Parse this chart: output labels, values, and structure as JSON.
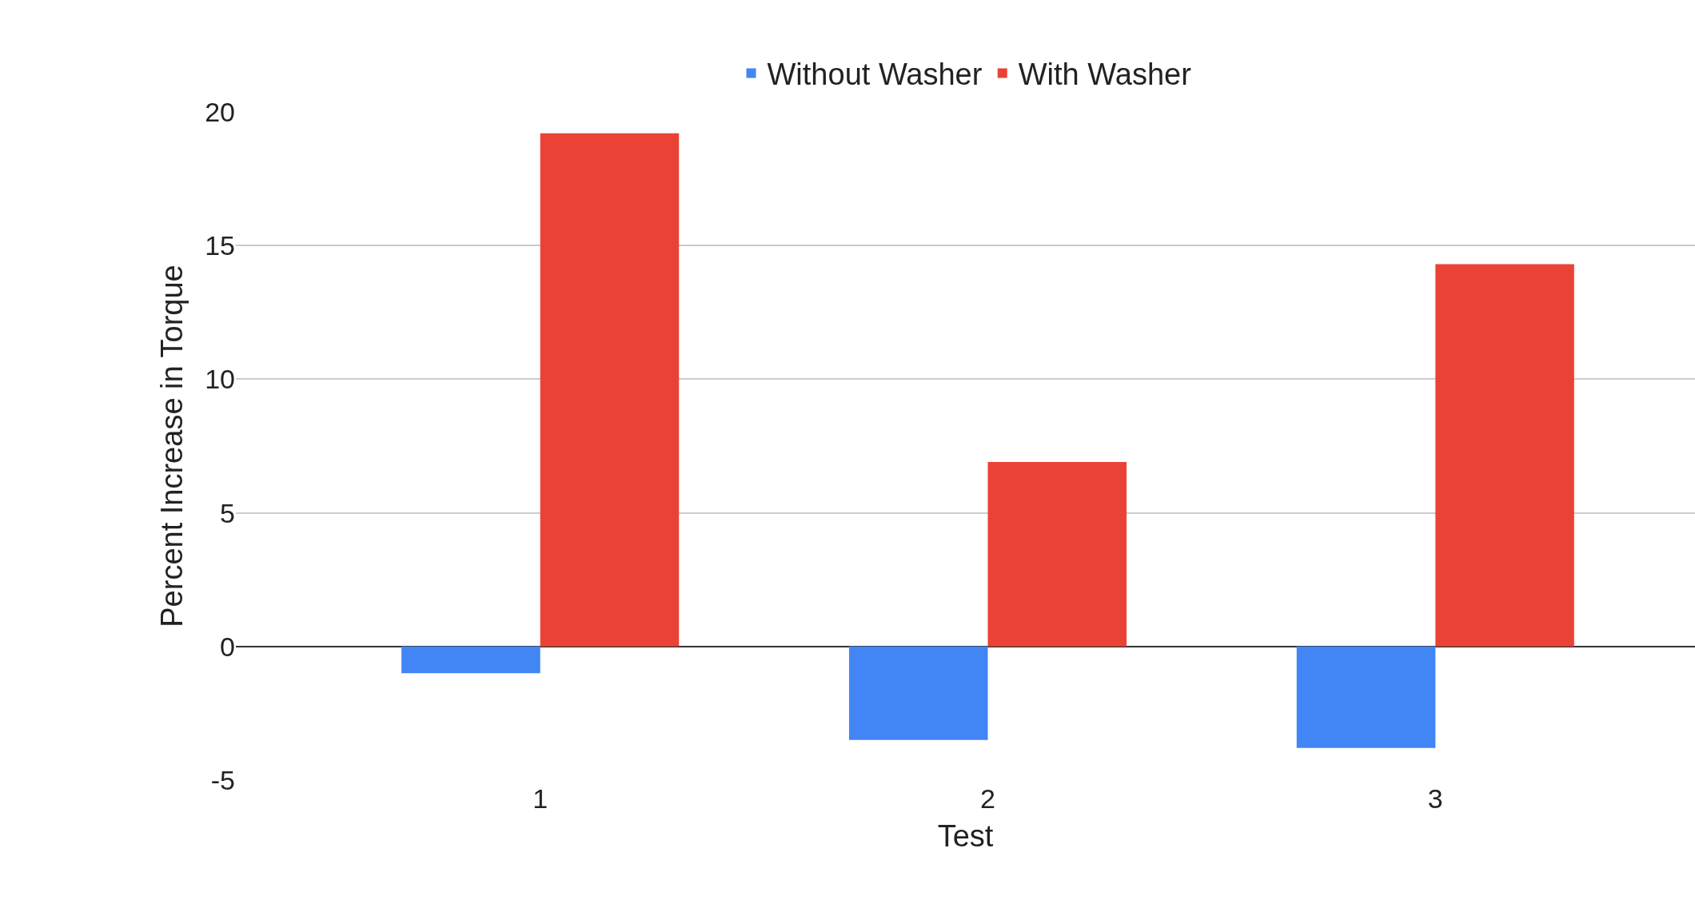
{
  "chart_data": {
    "type": "bar",
    "xlabel": "Test",
    "ylabel": "Percent Increase in Torque",
    "categories": [
      "1",
      "2",
      "3"
    ],
    "series": [
      {
        "name": "Without Washer",
        "color": "#4285f4",
        "values": [
          -1.0,
          -3.5,
          -3.8
        ]
      },
      {
        "name": "With Washer",
        "color": "#ea4335",
        "values": [
          19.2,
          6.9,
          14.3
        ]
      }
    ],
    "ylim": [
      -5,
      20
    ],
    "yticks": [
      -5,
      0,
      5,
      10,
      15,
      20
    ],
    "grid": "y",
    "legend": "top"
  }
}
